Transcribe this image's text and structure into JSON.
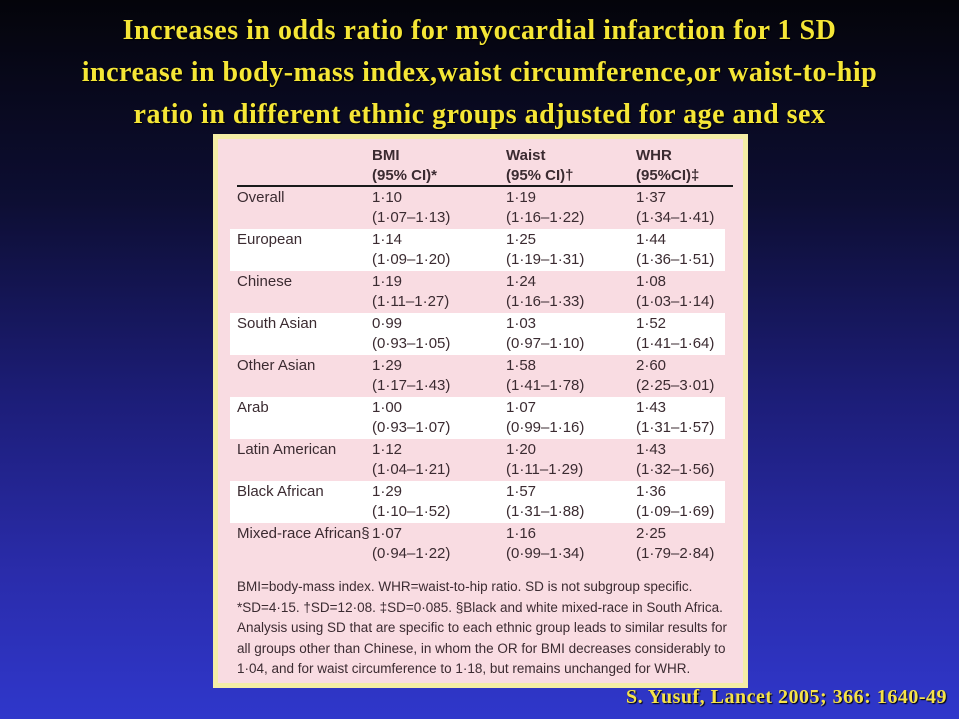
{
  "slide": {
    "title_lines": [
      "Increases in odds ratio for myocardial infarction for 1 SD",
      "increase in body-mass index,waist circumference,or waist-to-hip",
      "ratio in different ethnic groups adjusted for age and sex"
    ],
    "citation": "S. Yusuf, Lancet 2005; 366: 1640-49"
  },
  "table": {
    "columns": [
      {
        "line1": "BMI",
        "line2": "(95% CI)*"
      },
      {
        "line1": "Waist",
        "line2": "(95% CI)†"
      },
      {
        "line1": "WHR",
        "line2": "(95%CI)‡"
      }
    ],
    "rows": [
      {
        "group": "Overall",
        "bmi": "1·10",
        "bmi_ci": "(1·07–1·13)",
        "waist": "1·19",
        "waist_ci": "(1·16–1·22)",
        "whr": "1·37",
        "whr_ci": "(1·34–1·41)"
      },
      {
        "group": "European",
        "bmi": "1·14",
        "bmi_ci": "(1·09–1·20)",
        "waist": "1·25",
        "waist_ci": "(1·19–1·31)",
        "whr": "1·44",
        "whr_ci": "(1·36–1·51)"
      },
      {
        "group": "Chinese",
        "bmi": "1·19",
        "bmi_ci": "(1·11–1·27)",
        "waist": "1·24",
        "waist_ci": "(1·16–1·33)",
        "whr": "1·08",
        "whr_ci": "(1·03–1·14)"
      },
      {
        "group": "South Asian",
        "bmi": "0·99",
        "bmi_ci": "(0·93–1·05)",
        "waist": "1·03",
        "waist_ci": "(0·97–1·10)",
        "whr": "1·52",
        "whr_ci": "(1·41–1·64)"
      },
      {
        "group": "Other Asian",
        "bmi": "1·29",
        "bmi_ci": "(1·17–1·43)",
        "waist": "1·58",
        "waist_ci": "(1·41–1·78)",
        "whr": "2·60",
        "whr_ci": "(2·25–3·01)"
      },
      {
        "group": "Arab",
        "bmi": "1·00",
        "bmi_ci": "(0·93–1·07)",
        "waist": "1·07",
        "waist_ci": "(0·99–1·16)",
        "whr": "1·43",
        "whr_ci": "(1·31–1·57)"
      },
      {
        "group": "Latin American",
        "bmi": "1·12",
        "bmi_ci": "(1·04–1·21)",
        "waist": "1·20",
        "waist_ci": "(1·11–1·29)",
        "whr": "1·43",
        "whr_ci": "(1·32–1·56)"
      },
      {
        "group": "Black African",
        "bmi": "1·29",
        "bmi_ci": "(1·10–1·52)",
        "waist": "1·57",
        "waist_ci": "(1·31–1·88)",
        "whr": "1·36",
        "whr_ci": "(1·09–1·69)"
      },
      {
        "group": "Mixed-race African§",
        "bmi": "1·07",
        "bmi_ci": "(0·94–1·22)",
        "waist": "1·16",
        "waist_ci": "(0·99–1·34)",
        "whr": "2·25",
        "whr_ci": "(1·79–2·84)"
      }
    ],
    "footnote": "BMI=body-mass index. WHR=waist-to-hip ratio. SD is not subgroup specific. *SD=4·15. †SD=12·08. ‡SD=0·085. §Black and white mixed-race in South Africa. Analysis using SD that are specific to each ethnic group leads to similar results for all groups other than Chinese, in whom the OR for BMI decreases considerably to 1·04, and for waist circumference to 1·18, but remains unchanged for WHR."
  },
  "colors": {
    "background_top": "#04040a",
    "background_bottom": "#2f37cb",
    "title_yellow": "#f5e636",
    "citation_yellow": "#f5e24a",
    "panel_pink": "#f9dce2",
    "panel_border_cream": "#f4eda6",
    "row_alt_white": "#ffffff",
    "table_text": "#3b2b31",
    "header_rule": "#1a1a1a"
  }
}
